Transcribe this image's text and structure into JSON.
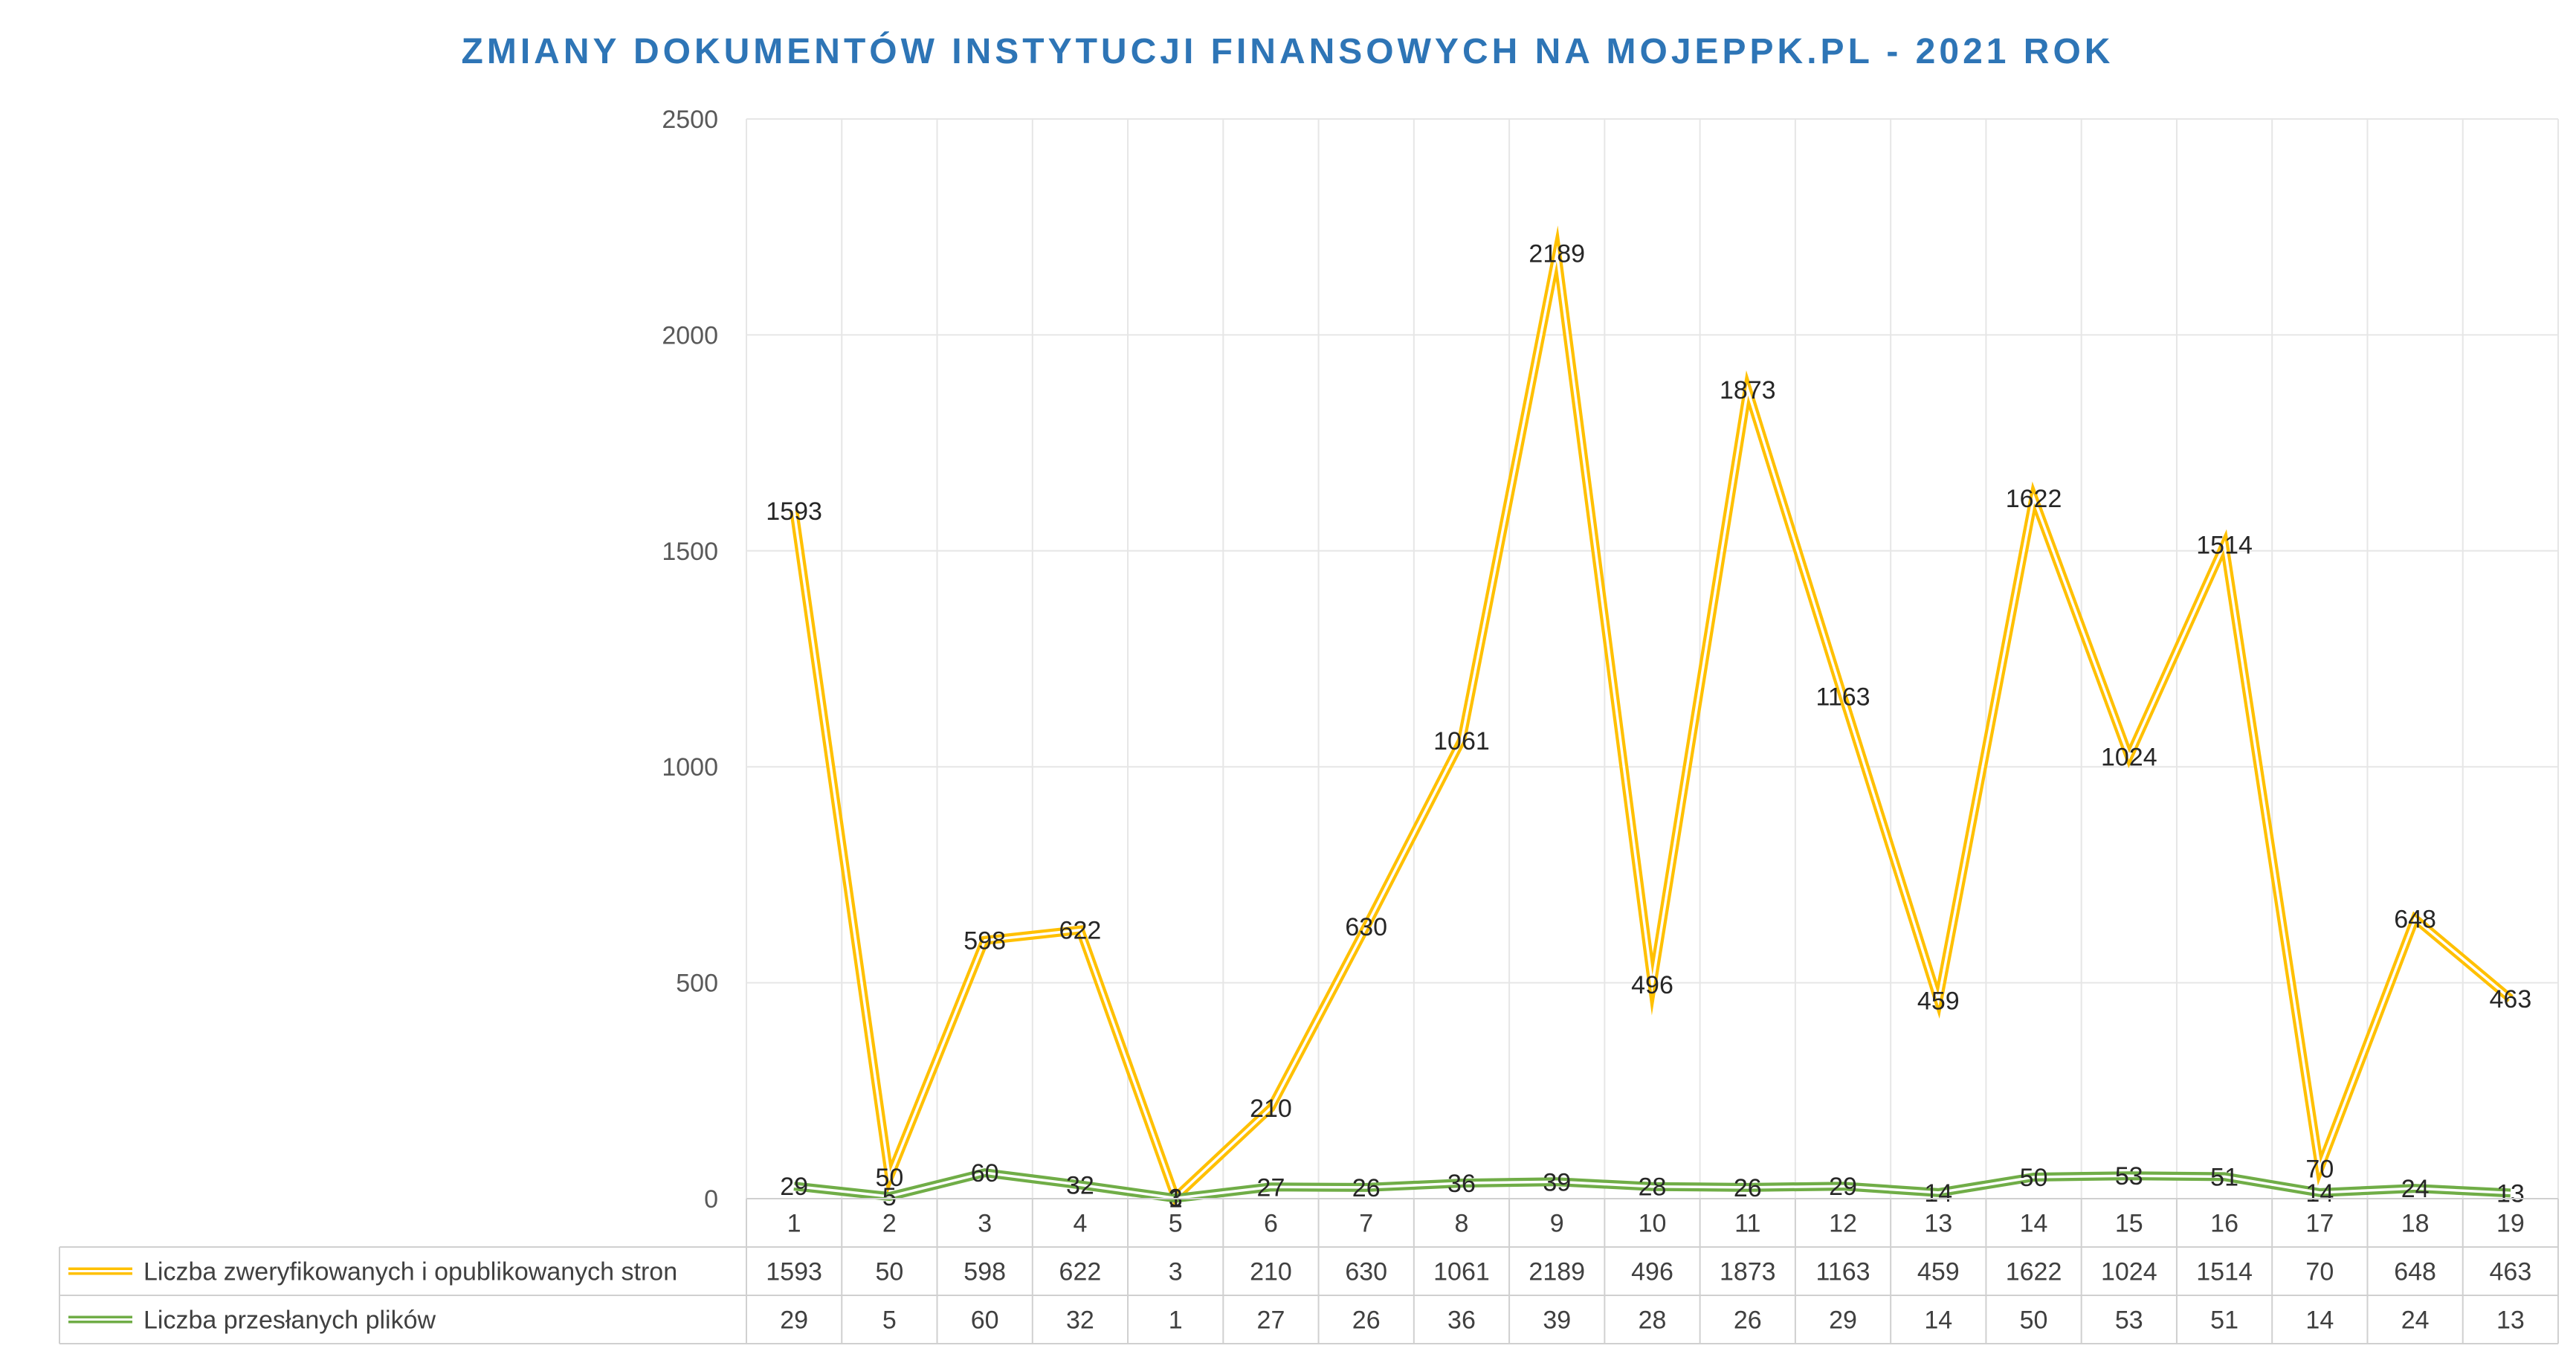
{
  "chart_data": {
    "type": "line",
    "title": "ZMIANY DOKUMENTÓW INSTYTUCJI FINANSOWYCH NA MOJEPPK.PL - 2021 ROK",
    "categories": [
      "1",
      "2",
      "3",
      "4",
      "5",
      "6",
      "7",
      "8",
      "9",
      "10",
      "11",
      "12",
      "13",
      "14",
      "15",
      "16",
      "17",
      "18",
      "19"
    ],
    "ylim": [
      0,
      2500
    ],
    "yticks": [
      0,
      500,
      1000,
      1500,
      2000,
      2500
    ],
    "grid": true,
    "legend_placement": "data table (bottom)",
    "series": [
      {
        "name": "Liczba zweryfikowanych i opublikowanych stron",
        "color": "#ffc000",
        "values": [
          1593,
          50,
          598,
          622,
          3,
          210,
          630,
          1061,
          2189,
          496,
          1873,
          1163,
          459,
          1622,
          1024,
          1514,
          70,
          648,
          463
        ]
      },
      {
        "name": "Liczba przesłanych plików",
        "color": "#70ad47",
        "values": [
          29,
          5,
          60,
          32,
          1,
          27,
          26,
          36,
          39,
          28,
          26,
          29,
          14,
          50,
          53,
          51,
          14,
          24,
          13
        ]
      }
    ]
  },
  "colors": {
    "title": "#2e75b6",
    "grid": "#e6e6e6",
    "table_border": "#d0d0d0"
  }
}
